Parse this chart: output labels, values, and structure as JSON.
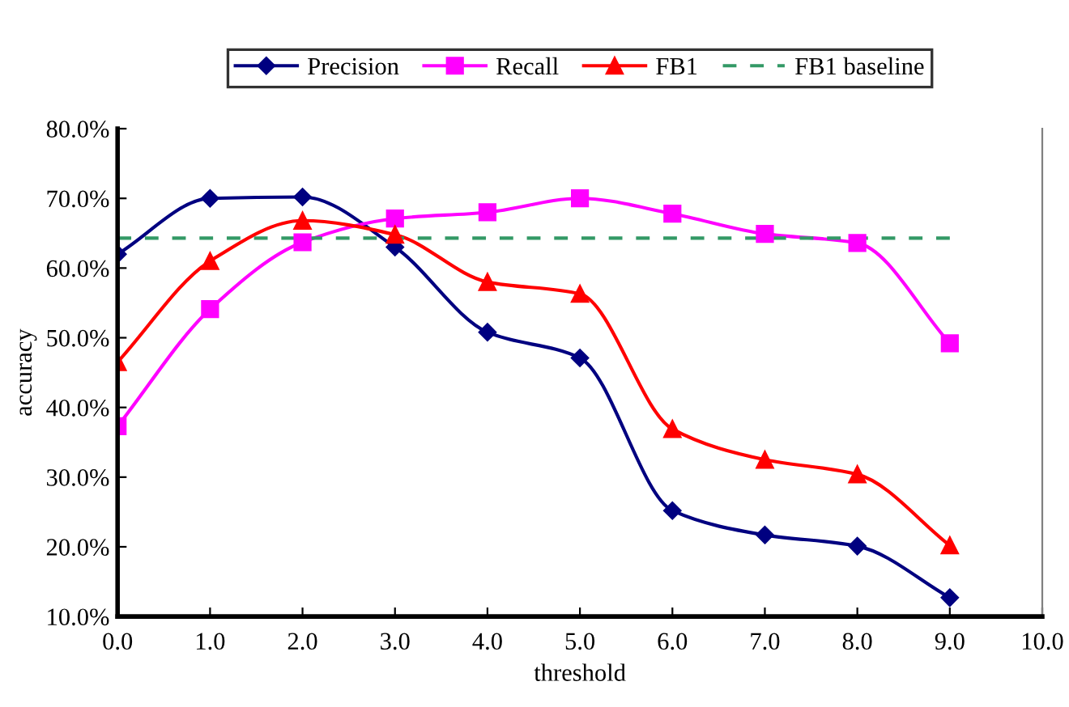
{
  "chart_data": {
    "type": "line",
    "xlabel": "threshold",
    "ylabel": "accuracy",
    "x": [
      0,
      1,
      2,
      3,
      4,
      5,
      6,
      7,
      8,
      9
    ],
    "series": [
      {
        "name": "Precision",
        "color": "#000080",
        "marker": "diamond",
        "values": [
          62.0,
          70.0,
          70.2,
          63.0,
          50.8,
          47.1,
          25.2,
          21.7,
          20.1,
          12.7
        ]
      },
      {
        "name": "Recall",
        "color": "#ff00ff",
        "marker": "square",
        "values": [
          37.3,
          54.1,
          63.7,
          67.1,
          68.0,
          70.0,
          67.8,
          64.9,
          63.6,
          49.2
        ]
      },
      {
        "name": "FB1",
        "color": "#ff0000",
        "marker": "triangle",
        "values": [
          46.5,
          61.0,
          66.8,
          64.8,
          58.0,
          56.3,
          36.9,
          32.5,
          30.4,
          20.2
        ]
      },
      {
        "name": "FB1 baseline",
        "color": "#339966",
        "marker": "none",
        "line_style": "dashed",
        "values": [
          64.3,
          64.3,
          64.3,
          64.3,
          64.3,
          64.3,
          64.3,
          64.3,
          64.3,
          64.3
        ]
      }
    ],
    "xlim": [
      0,
      10
    ],
    "xticks": [
      {
        "value": 0,
        "label": "0.0"
      },
      {
        "value": 1,
        "label": "1.0"
      },
      {
        "value": 2,
        "label": "2.0"
      },
      {
        "value": 3,
        "label": "3.0"
      },
      {
        "value": 4,
        "label": "4.0"
      },
      {
        "value": 5,
        "label": "5.0"
      },
      {
        "value": 6,
        "label": "6.0"
      },
      {
        "value": 7,
        "label": "7.0"
      },
      {
        "value": 8,
        "label": "8.0"
      },
      {
        "value": 9,
        "label": "9.0"
      },
      {
        "value": 10,
        "label": "10.0"
      }
    ],
    "ylim": [
      10,
      80
    ],
    "yticks": [
      {
        "value": 10,
        "label": "10.0%"
      },
      {
        "value": 20,
        "label": "20.0%"
      },
      {
        "value": 30,
        "label": "30.0%"
      },
      {
        "value": 40,
        "label": "40.0%"
      },
      {
        "value": 50,
        "label": "50.0%"
      },
      {
        "value": 60,
        "label": "60.0%"
      },
      {
        "value": 70,
        "label": "70.0%"
      },
      {
        "value": 80,
        "label": "80.0%"
      }
    ],
    "grid": false,
    "legend": "top"
  }
}
